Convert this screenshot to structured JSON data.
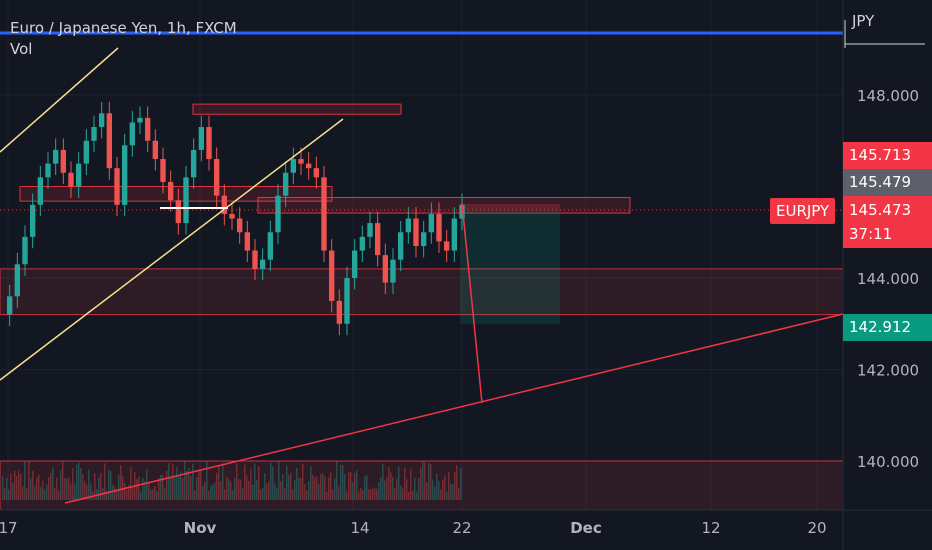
{
  "chart_data": {
    "type": "candlestick",
    "title": "Euro / Japanese Yen, 1h, FXCM",
    "indicator": "Vol",
    "currency": "JPY",
    "symbol": "EURJPY",
    "last_price": "145.473",
    "countdown": "37:11",
    "high_label": "145.713",
    "mid_label": "145.479",
    "trend_label": "142.912",
    "y_ticks": [
      "148.000",
      "144.000",
      "142.000",
      "140.000"
    ],
    "y_tick_values": [
      148,
      144,
      142,
      140
    ],
    "x_ticks": [
      "17",
      "Nov",
      "14",
      "22",
      "Dec",
      "12",
      "20"
    ],
    "ylim": [
      139.0,
      149.7
    ],
    "close_series": [
      143.2,
      143.6,
      144.3,
      144.9,
      145.6,
      146.2,
      146.5,
      146.8,
      146.3,
      146.0,
      146.5,
      147.0,
      147.3,
      147.6,
      146.4,
      145.6,
      146.9,
      147.4,
      147.5,
      147.0,
      146.6,
      146.1,
      145.7,
      145.2,
      146.2,
      146.8,
      147.3,
      146.6,
      145.8,
      145.4,
      145.3,
      145.0,
      144.6,
      144.2,
      144.4,
      145.0,
      145.8,
      146.3,
      146.6,
      146.5,
      146.4,
      146.2,
      144.6,
      143.5,
      143.0,
      144.0,
      144.6,
      144.9,
      145.2,
      144.5,
      143.9,
      144.4,
      145.0,
      145.3,
      144.7,
      145.0,
      145.4,
      144.8,
      144.6,
      145.3,
      145.6
    ],
    "colors": {
      "up": "#26a69a",
      "down": "#ef5350",
      "price_line": "#f23645",
      "blue_line": "#2962ff",
      "channel": "#f7e08c",
      "zone": "#f23645",
      "target": "#089981"
    }
  }
}
